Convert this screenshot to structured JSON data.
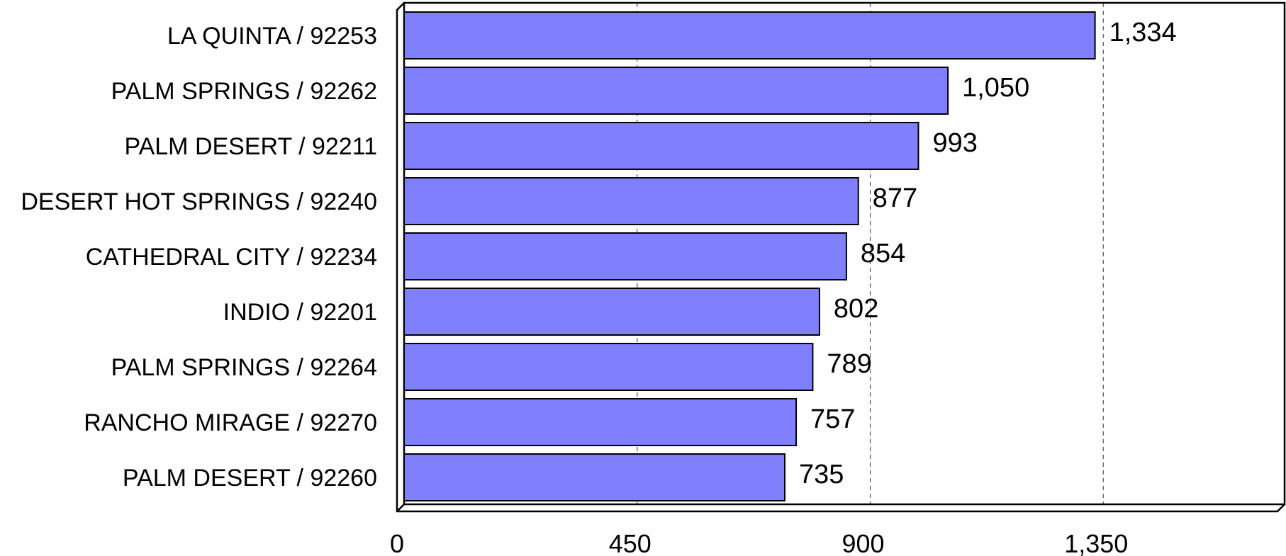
{
  "chart_data": {
    "type": "bar",
    "orientation": "horizontal",
    "categories": [
      "LA QUINTA / 92253",
      "PALM SPRINGS / 92262",
      "PALM DESERT / 92211",
      "DESERT HOT SPRINGS / 92240",
      "CATHEDRAL CITY / 92234",
      "INDIO / 92201",
      "PALM SPRINGS / 92264",
      "RANCHO MIRAGE / 92270",
      "PALM DESERT / 92260"
    ],
    "values": [
      1334,
      1050,
      993,
      877,
      854,
      802,
      789,
      757,
      735
    ],
    "value_labels": [
      "1,334",
      "1,050",
      "993",
      "877",
      "854",
      "802",
      "789",
      "757",
      "735"
    ],
    "xlim": [
      0,
      1700
    ],
    "x_ticks": [
      0,
      450,
      900,
      1350
    ],
    "x_tick_labels": [
      "0",
      "450",
      "900",
      "1,350"
    ],
    "grid": "vertical dashed",
    "bar_color": "#8080ff",
    "style": "3d-frame",
    "title": "",
    "xlabel": "",
    "ylabel": ""
  }
}
